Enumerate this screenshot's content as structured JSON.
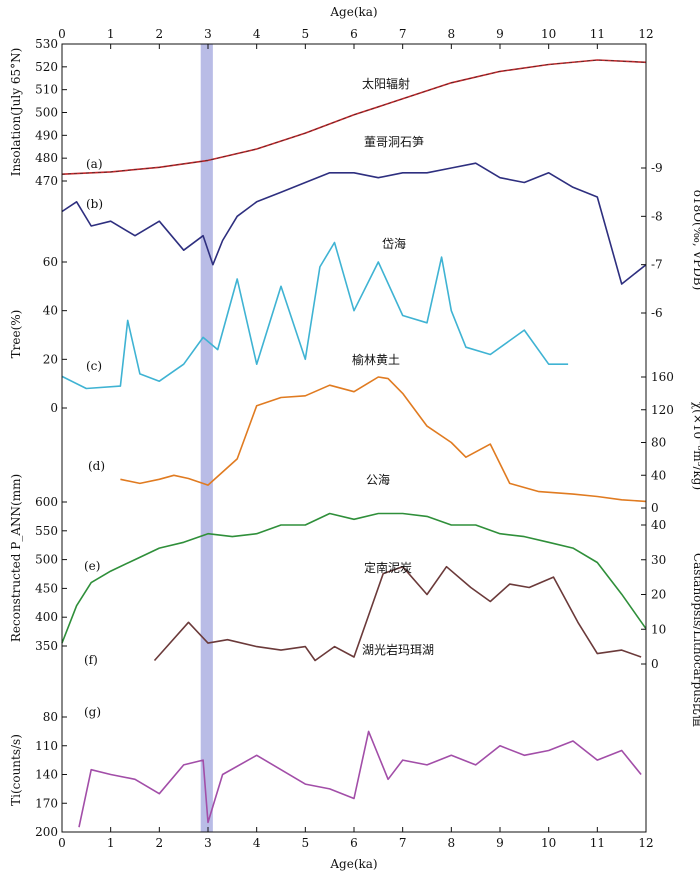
{
  "chart_data": {
    "type": "line",
    "x_axis": {
      "label": "Age(ka)",
      "range": [
        0,
        12
      ],
      "ticks": [
        "0",
        "1",
        "2",
        "3",
        "4",
        "5",
        "6",
        "7",
        "8",
        "9",
        "10",
        "11",
        "12"
      ]
    },
    "highlight_band": {
      "x_range": [
        2.85,
        3.1
      ],
      "color": "#8b8fd6"
    },
    "y_axes": [
      {
        "id": "insolation",
        "label": "Insolation(July 65°N)",
        "side": "left",
        "ticks": [
          "470",
          "480",
          "490",
          "500",
          "510",
          "520",
          "530"
        ]
      },
      {
        "id": "d18O",
        "label": "δ18O(‰, VPDB)",
        "side": "right",
        "ticks": [
          "-6",
          "-7",
          "-8",
          "-9"
        ]
      },
      {
        "id": "tree",
        "label": "Tree(%)",
        "side": "left",
        "ticks": [
          "0",
          "20",
          "40",
          "60"
        ]
      },
      {
        "id": "chi",
        "label": "χ(×10⁻⁸m³/kg)",
        "side": "right",
        "ticks": [
          "0",
          "40",
          "80",
          "120",
          "160"
        ]
      },
      {
        "id": "precip",
        "label": "Reconstructed P_ANN(mm)",
        "side": "left",
        "ticks": [
          "350",
          "400",
          "450",
          "500",
          "550",
          "600"
        ]
      },
      {
        "id": "ratio",
        "label": "Castanopsis/Lithocarpus比值",
        "side": "right",
        "ticks": [
          "0",
          "10",
          "20",
          "30",
          "40"
        ]
      },
      {
        "id": "ti",
        "label": "Ti(counts/s)",
        "side": "left",
        "ticks": [
          "80",
          "110",
          "140",
          "170",
          "200"
        ]
      }
    ],
    "series": [
      {
        "panel": "(a)",
        "name": "太阳辐射",
        "axis": "insolation",
        "color": "#c0282b",
        "x": [
          0,
          1,
          2,
          3,
          4,
          5,
          6,
          7,
          8,
          9,
          10,
          11,
          12
        ],
        "y": [
          473,
          474,
          476,
          479,
          484,
          491,
          499,
          506,
          513,
          518,
          521,
          523,
          522
        ]
      },
      {
        "panel": "(b)",
        "name": "董哥洞石笋",
        "axis": "d18O",
        "color": "#2e2f7f",
        "x": [
          0,
          0.3,
          0.6,
          1,
          1.5,
          2,
          2.5,
          2.9,
          3.1,
          3.3,
          3.6,
          4,
          4.5,
          5,
          5.5,
          6,
          6.5,
          7,
          7.5,
          8,
          8.5,
          9,
          9.5,
          10,
          10.5,
          11,
          11.5,
          12
        ],
        "y": [
          -8.1,
          -8.3,
          -7.8,
          -7.9,
          -7.6,
          -7.9,
          -7.3,
          -7.6,
          -7.0,
          -7.5,
          -8.0,
          -8.3,
          -8.5,
          -8.7,
          -8.9,
          -8.9,
          -8.8,
          -8.9,
          -8.9,
          -9.0,
          -9.1,
          -8.8,
          -8.7,
          -8.9,
          -8.6,
          -8.4,
          -6.6,
          -7.0
        ]
      },
      {
        "panel": "(c)",
        "name": "岱海",
        "axis": "tree",
        "color": "#3fb3d3",
        "x": [
          0,
          0.5,
          1.2,
          1.35,
          1.6,
          2,
          2.5,
          2.9,
          3.2,
          3.6,
          4,
          4.5,
          5,
          5.3,
          5.6,
          6,
          6.5,
          7,
          7.5,
          7.8,
          8,
          8.3,
          8.8,
          9.5,
          10,
          10.4
        ],
        "y": [
          13,
          8,
          9,
          36,
          14,
          11,
          18,
          29,
          24,
          53,
          18,
          50,
          20,
          58,
          68,
          40,
          60,
          38,
          35,
          62,
          40,
          25,
          22,
          32,
          18,
          18
        ]
      },
      {
        "panel": "(d)",
        "name": "榆林黄土",
        "axis": "chi",
        "color": "#e07b21",
        "x": [
          1.2,
          1.6,
          2,
          2.3,
          2.6,
          3,
          3.6,
          4,
          4.5,
          5,
          5.5,
          6,
          6.5,
          6.7,
          7,
          7.5,
          8,
          8.3,
          8.8,
          9.2,
          9.8,
          10.5,
          11,
          11.5,
          12
        ],
        "y": [
          35,
          30,
          35,
          40,
          36,
          28,
          60,
          125,
          135,
          137,
          150,
          142,
          160,
          158,
          140,
          100,
          80,
          62,
          78,
          30,
          20,
          17,
          14,
          10,
          8
        ]
      },
      {
        "panel": "(e)",
        "name": "公海",
        "axis": "precip",
        "color": "#2f8f3a",
        "x": [
          0,
          0.3,
          0.6,
          1,
          1.5,
          2,
          2.5,
          3,
          3.5,
          4,
          4.5,
          5,
          5.5,
          6,
          6.5,
          7,
          7.5,
          8,
          8.5,
          9,
          9.5,
          10,
          10.5,
          11,
          11.5,
          12
        ],
        "y": [
          355,
          420,
          460,
          480,
          500,
          520,
          530,
          545,
          540,
          545,
          560,
          560,
          580,
          570,
          580,
          580,
          575,
          560,
          560,
          545,
          540,
          530,
          520,
          495,
          440,
          380
        ]
      },
      {
        "panel": "(f)",
        "name": "定南泥炭",
        "axis": "ratio",
        "color": "#6b3a3a",
        "x": [
          1.9,
          2.6,
          3,
          3.4,
          4,
          4.5,
          5,
          5.2,
          5.6,
          6,
          6.3,
          6.6,
          7,
          7.5,
          7.9,
          8.4,
          8.8,
          9.2,
          9.6,
          10.1,
          10.6,
          11,
          11.5,
          11.9
        ],
        "y": [
          1,
          12,
          6,
          7,
          5,
          4,
          5,
          1,
          5,
          2,
          14,
          26,
          28,
          20,
          28,
          22,
          18,
          23,
          22,
          25,
          12,
          3,
          4,
          2
        ]
      },
      {
        "panel": "(g)",
        "name": "湖光岩玛珥湖",
        "axis": "ti",
        "color": "#a24ea8",
        "x": [
          0.35,
          0.6,
          1,
          1.5,
          2,
          2.5,
          2.9,
          3,
          3.3,
          4,
          4.5,
          5,
          5.5,
          6,
          6.3,
          6.7,
          7,
          7.5,
          8,
          8.5,
          9,
          9.5,
          10,
          10.5,
          11,
          11.5,
          11.9
        ],
        "y": [
          195,
          135,
          140,
          145,
          160,
          130,
          125,
          190,
          140,
          120,
          135,
          150,
          155,
          165,
          95,
          145,
          125,
          130,
          120,
          130,
          110,
          120,
          115,
          105,
          125,
          115,
          140
        ]
      }
    ]
  }
}
